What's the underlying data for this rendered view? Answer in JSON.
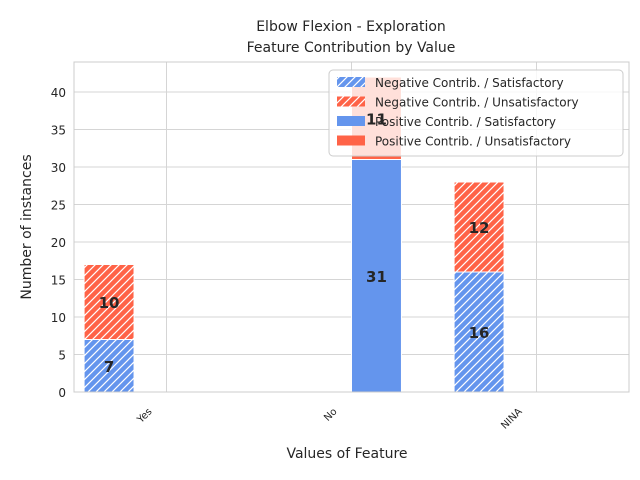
{
  "chart_data": {
    "type": "bar",
    "title_line1": "Elbow Flexion - Exploration",
    "title_line2": "Feature Contribution by Value",
    "xlabel": "Values of Feature",
    "ylabel": "Number of instances",
    "categories": [
      "Yes",
      "No",
      "NINA"
    ],
    "ylim": [
      0,
      44
    ],
    "yticks": [
      0,
      5,
      10,
      15,
      20,
      25,
      30,
      35,
      40
    ],
    "grid": true,
    "legend_position": "top-right",
    "series": [
      {
        "name": "Negative Contrib. / Satisfactory",
        "group": "negative",
        "stack": "bottom",
        "color": "#6495ED",
        "hatched": true,
        "values": [
          7,
          0,
          16
        ]
      },
      {
        "name": "Negative Contrib. / Unsatisfactory",
        "group": "negative",
        "stack": "top",
        "color": "#FF6347",
        "hatched": true,
        "values": [
          10,
          0,
          12
        ]
      },
      {
        "name": "Positive Contrib. / Satisfactory",
        "group": "positive",
        "stack": "bottom",
        "color": "#6495ED",
        "hatched": false,
        "values": [
          0,
          31,
          0
        ]
      },
      {
        "name": "Positive Contrib. / Unsatisfactory",
        "group": "positive",
        "stack": "top",
        "color": "#FF6347",
        "hatched": false,
        "values": [
          0,
          11,
          0
        ]
      }
    ],
    "data_labels": [
      {
        "series": 0,
        "category": 0,
        "text": "7"
      },
      {
        "series": 1,
        "category": 0,
        "text": "10"
      },
      {
        "series": 2,
        "category": 1,
        "text": "31"
      },
      {
        "series": 3,
        "category": 1,
        "text": "11"
      },
      {
        "series": 0,
        "category": 2,
        "text": "16"
      },
      {
        "series": 1,
        "category": 2,
        "text": "12"
      }
    ]
  }
}
